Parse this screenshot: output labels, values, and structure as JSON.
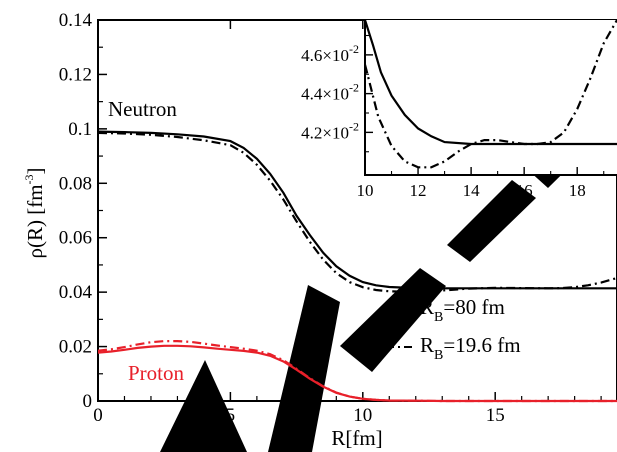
{
  "chart_data": [
    {
      "type": "line",
      "xlabel": "R[fm]",
      "ylabel": "ρ(R) [fm^-3]",
      "ylabel_parts": {
        "main": "ρ(R) [fm",
        "sup": "-3",
        "end": "]"
      },
      "xlim": [
        0,
        19.6
      ],
      "ylim": [
        0,
        0.14
      ],
      "x_ticks": [
        0,
        5,
        10,
        15
      ],
      "x_tick_labels": [
        "0",
        "5",
        "10",
        "15"
      ],
      "y_ticks": [
        0,
        0.02,
        0.04,
        0.06,
        0.08,
        0.1,
        0.12,
        0.14
      ],
      "y_tick_labels": [
        "0",
        "0.02",
        "0.04",
        "0.06",
        "0.08",
        "0.1",
        "0.12",
        "0.14"
      ],
      "annotations": [
        {
          "text": "Neutron",
          "color": "#000000"
        },
        {
          "text": "Proton",
          "color": "#e8202a"
        }
      ],
      "legend": {
        "placement": "right",
        "entries": [
          {
            "prefix": "R",
            "sub": "B",
            "suffix": "=80 fm",
            "style": "solid"
          },
          {
            "prefix": "R",
            "sub": "B",
            "suffix": "=19.6 fm",
            "style": "dash-dot"
          }
        ]
      },
      "series": [
        {
          "group": "Neutron",
          "legend": "R_B=80 fm",
          "style": "solid",
          "color": "#000000",
          "x": [
            0,
            1,
            2,
            3,
            4,
            5,
            5.5,
            6,
            6.5,
            7,
            7.5,
            8,
            8.5,
            9,
            9.5,
            10,
            10.5,
            11,
            12,
            13,
            14,
            15,
            16,
            17,
            18,
            19,
            19.6
          ],
          "y": [
            0.099,
            0.0988,
            0.0985,
            0.098,
            0.0972,
            0.0955,
            0.093,
            0.089,
            0.0835,
            0.0765,
            0.068,
            0.061,
            0.0545,
            0.0495,
            0.046,
            0.0437,
            0.0425,
            0.0419,
            0.0415,
            0.0414,
            0.0414,
            0.0414,
            0.0414,
            0.0414,
            0.0414,
            0.0414,
            0.0414
          ]
        },
        {
          "group": "Neutron",
          "legend": "R_B=19.6 fm",
          "style": "dash-dot",
          "color": "#000000",
          "x": [
            0,
            1,
            2,
            3,
            4,
            5,
            5.5,
            6,
            6.5,
            7,
            7.5,
            8,
            8.5,
            9,
            9.5,
            10,
            10.5,
            11,
            11.5,
            12,
            13,
            14,
            15,
            16,
            17,
            17.5,
            18,
            18.5,
            19,
            19.6
          ],
          "y": [
            0.0985,
            0.0983,
            0.0978,
            0.097,
            0.0958,
            0.094,
            0.0912,
            0.0868,
            0.081,
            0.074,
            0.066,
            0.0585,
            0.052,
            0.047,
            0.0437,
            0.0418,
            0.0408,
            0.0403,
            0.0402,
            0.0402,
            0.0406,
            0.0413,
            0.0416,
            0.0415,
            0.0414,
            0.0415,
            0.0418,
            0.0425,
            0.0435,
            0.0452
          ]
        },
        {
          "group": "Proton",
          "legend": "R_B=80 fm",
          "style": "solid",
          "color": "#e8202a",
          "x": [
            0,
            0.5,
            1,
            1.5,
            2,
            2.5,
            3,
            3.5,
            4,
            4.5,
            5,
            5.5,
            6,
            6.5,
            7,
            7.5,
            8,
            8.5,
            9,
            9.5,
            10,
            10.5,
            11,
            12,
            13,
            15,
            19.6
          ],
          "y": [
            0.0178,
            0.0182,
            0.0188,
            0.0195,
            0.02,
            0.0203,
            0.0203,
            0.0201,
            0.0197,
            0.0192,
            0.0188,
            0.0184,
            0.0178,
            0.0166,
            0.0145,
            0.0115,
            0.0082,
            0.0053,
            0.003,
            0.0016,
            0.0008,
            0.0004,
            0.0002,
            0.0001,
            0,
            0,
            0
          ]
        },
        {
          "group": "Proton",
          "legend": "R_B=19.6 fm",
          "style": "dash-dot",
          "color": "#e8202a",
          "x": [
            0,
            0.5,
            1,
            1.5,
            2,
            2.5,
            3,
            3.5,
            4,
            4.5,
            5,
            5.5,
            6,
            6.5,
            7,
            7.5,
            8,
            8.5,
            9,
            9.5,
            10,
            10.5,
            11,
            12,
            13,
            15,
            19.6
          ],
          "y": [
            0.0185,
            0.019,
            0.0198,
            0.0208,
            0.0216,
            0.022,
            0.022,
            0.0217,
            0.0211,
            0.0204,
            0.0198,
            0.0192,
            0.0185,
            0.0172,
            0.015,
            0.0118,
            0.0084,
            0.0054,
            0.0031,
            0.0016,
            0.0008,
            0.0004,
            0.0002,
            0.0001,
            0,
            0,
            0
          ]
        }
      ]
    },
    {
      "type": "line",
      "placement": "top-right inset",
      "xlim": [
        10,
        19.5
      ],
      "ylim": [
        0.0398,
        0.0478
      ],
      "x_ticks": [
        10,
        12,
        14,
        16,
        18
      ],
      "x_tick_labels": [
        "10",
        "12",
        "14",
        "16",
        "18"
      ],
      "y_ticks": [
        0.042,
        0.044,
        0.046
      ],
      "y_tick_labels": [
        {
          "mant": "4.2×10",
          "exp": "-2"
        },
        {
          "mant": "4.4×10",
          "exp": "-2"
        },
        {
          "mant": "4.6×10",
          "exp": "-2"
        }
      ],
      "series": [
        {
          "legend": "R_B=80 fm",
          "style": "solid",
          "color": "#000000",
          "x": [
            10,
            10.3,
            10.6,
            11,
            11.5,
            12,
            12.5,
            13,
            14,
            15,
            16,
            17,
            18,
            19,
            19.5
          ],
          "y": [
            0.0482,
            0.0465,
            0.0451,
            0.0439,
            0.0429,
            0.0422,
            0.0418,
            0.0415,
            0.0414,
            0.0414,
            0.0414,
            0.0414,
            0.0414,
            0.0414,
            0.0414
          ]
        },
        {
          "legend": "R_B=19.6 fm",
          "style": "dash-dot",
          "color": "#000000",
          "x": [
            10,
            10.5,
            11,
            11.5,
            12,
            12.5,
            13,
            13.5,
            14,
            14.5,
            15,
            15.5,
            16,
            16.5,
            17,
            17.5,
            18,
            18.5,
            19,
            19.5
          ],
          "y": [
            0.0455,
            0.0428,
            0.0413,
            0.0405,
            0.0402,
            0.0402,
            0.0405,
            0.041,
            0.0414,
            0.0416,
            0.0416,
            0.0415,
            0.0414,
            0.0414,
            0.0415,
            0.042,
            0.0432,
            0.0448,
            0.0466,
            0.048
          ]
        }
      ]
    }
  ]
}
